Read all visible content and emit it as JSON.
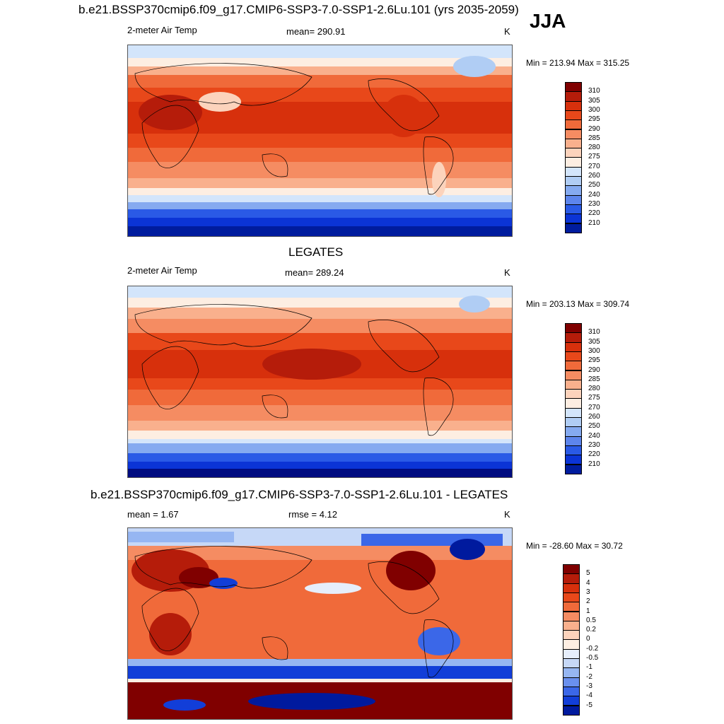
{
  "header": {
    "title": "b.e21.BSSP370cmip6.f09_g17.CMIP6-SSP3-7.0-SSP1-2.6Lu.101 (yrs 2035-2059)",
    "season": "JJA"
  },
  "panels": [
    {
      "name": "model",
      "variable": "2-meter Air Temp",
      "stat": "mean= 290.91",
      "units": "K",
      "minmax": "Min = 213.94 Max = 315.25",
      "levels": [
        "310",
        "305",
        "300",
        "295",
        "290",
        "285",
        "280",
        "275",
        "270",
        "260",
        "250",
        "240",
        "230",
        "220",
        "210"
      ]
    },
    {
      "name": "obs",
      "title": "LEGATES",
      "variable": "2-meter Air Temp",
      "stat": "mean= 289.24",
      "units": "K",
      "minmax": "Min = 203.13 Max = 309.74",
      "levels": [
        "310",
        "305",
        "300",
        "295",
        "290",
        "285",
        "280",
        "275",
        "270",
        "260",
        "250",
        "240",
        "230",
        "220",
        "210"
      ]
    },
    {
      "name": "diff",
      "title": "b.e21.BSSP370cmip6.f09_g17.CMIP6-SSP3-7.0-SSP1-2.6Lu.101 - LEGATES",
      "stat_left": "mean =   1.67",
      "stat_mid": "rmse =   4.12",
      "units": "K",
      "minmax": "Min = -28.60 Max =  30.72",
      "levels": [
        "5",
        "4",
        "3",
        "2",
        "1",
        "0.5",
        "0.2",
        "0",
        "-0.2",
        "-0.5",
        "-1",
        "-2",
        "-3",
        "-4",
        "-5"
      ]
    }
  ],
  "colors": {
    "abs": [
      "#800000",
      "#b51c0a",
      "#d7300c",
      "#e8481a",
      "#f06a3a",
      "#f58c62",
      "#f9b08d",
      "#fcd3bc",
      "#fdeee2",
      "#d3e5fb",
      "#b0cdf4",
      "#85aaf0",
      "#5d85ec",
      "#2a5ae6",
      "#0b34d6",
      "#001c9e",
      "#000c80"
    ],
    "diff": [
      "#800000",
      "#b51c0a",
      "#d7300c",
      "#e8481a",
      "#f06a3a",
      "#f58c62",
      "#f9b08d",
      "#fcd3bc",
      "#fdeee2",
      "#e6eefb",
      "#c6d8f7",
      "#96b6f2",
      "#6a90ee",
      "#3b67e8",
      "#123ed8",
      "#001a9e"
    ]
  }
}
